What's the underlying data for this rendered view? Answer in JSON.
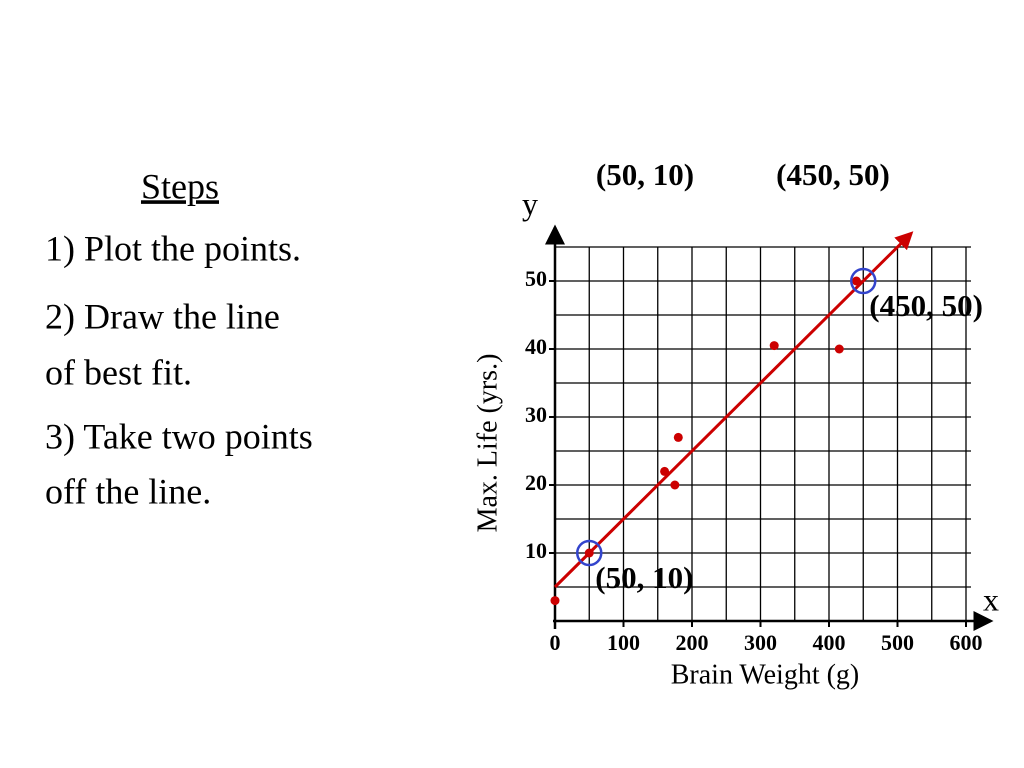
{
  "slide": {
    "heading": "Steps",
    "items": [
      [
        "1) Plot the points."
      ],
      [
        "2) Draw the line",
        "of best fit."
      ],
      [
        "3) Take two points",
        "off the line."
      ]
    ],
    "top_labels": [
      "(50, 10)",
      "(450, 50)"
    ]
  },
  "chart_data": {
    "type": "scatter",
    "xlabel": "Brain Weight (g)",
    "ylabel": "Max. Life (yrs.)",
    "x_axis_letter": "x",
    "y_axis_letter": "y",
    "xlim": [
      0,
      600
    ],
    "ylim": [
      0,
      55
    ],
    "xticks": [
      0,
      100,
      200,
      300,
      400,
      500,
      600
    ],
    "yticks": [
      10,
      20,
      30,
      40,
      50
    ],
    "xgrid": [
      50,
      100,
      150,
      200,
      250,
      300,
      350,
      400,
      450,
      500,
      550,
      600
    ],
    "ygrid": [
      5,
      10,
      15,
      20,
      25,
      30,
      35,
      40,
      45,
      50,
      55
    ],
    "grid": true,
    "series": [
      {
        "color": "#cc0000",
        "x": [
          0,
          50,
          160,
          175,
          180,
          320,
          415,
          440
        ],
        "values": [
          3,
          10,
          22,
          20,
          27,
          40.5,
          40,
          50
        ]
      }
    ],
    "fit_line": {
      "color": "#cc0000",
      "x": [
        0,
        520
      ],
      "values": [
        5,
        57
      ]
    },
    "highlights": [
      {
        "x": 50,
        "y": 10,
        "label": "(50, 10)",
        "color": "#3344cc"
      },
      {
        "x": 450,
        "y": 50,
        "label": "(450, 50)",
        "color": "#3344cc"
      }
    ]
  }
}
